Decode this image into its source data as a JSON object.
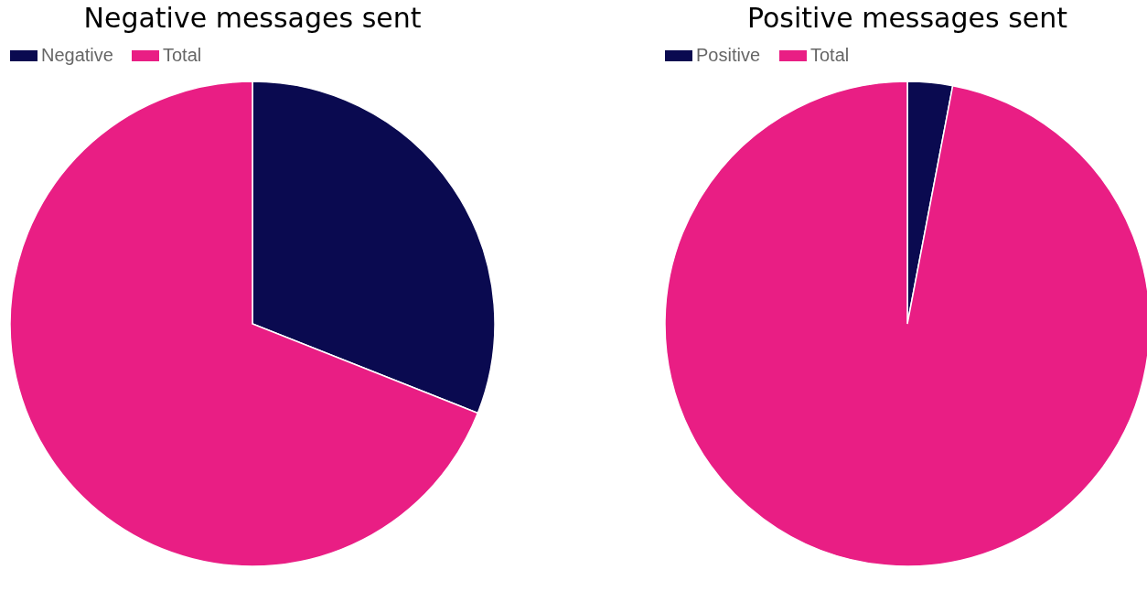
{
  "chart_data": [
    {
      "type": "pie",
      "title": "Negative messages sent",
      "categories": [
        "Negative",
        "Total"
      ],
      "values": [
        31,
        69
      ],
      "colors": [
        "#0a0a50",
        "#e91e84"
      ],
      "legend": "top"
    },
    {
      "type": "pie",
      "title": "Positive messages sent",
      "categories": [
        "Positive",
        "Total"
      ],
      "values": [
        3,
        97
      ],
      "colors": [
        "#0a0a50",
        "#e91e84"
      ],
      "legend": "top"
    }
  ]
}
